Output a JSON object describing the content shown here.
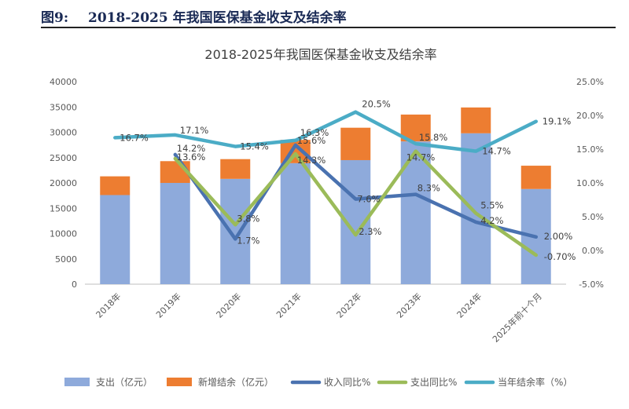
{
  "header": {
    "figure_label": "图9:",
    "figure_title": "2018-2025 年我国医保基金收支及结余率"
  },
  "chart_data": {
    "type": "bar",
    "title": "2018-2025年我国医保基金收支及结余率",
    "categories": [
      "2018年",
      "2019年",
      "2020年",
      "2021年",
      "2022年",
      "2023年",
      "2024年",
      "2025年前十个月"
    ],
    "left_axis": {
      "ylim": [
        0,
        40000
      ],
      "ticks": [
        0,
        5000,
        10000,
        15000,
        20000,
        25000,
        30000,
        35000,
        40000
      ],
      "tick_labels": [
        "0",
        "5000",
        "10000",
        "15000",
        "20000",
        "25000",
        "30000",
        "35000",
        "40000"
      ]
    },
    "right_axis": {
      "ylim": [
        -5,
        25
      ],
      "ticks": [
        -5,
        0,
        5,
        10,
        15,
        20,
        25
      ],
      "tick_labels": [
        "-5.0%",
        "0.0%",
        "5.0%",
        "10.0%",
        "15.0%",
        "20.0%",
        "25.0%"
      ]
    },
    "bar_series": [
      {
        "name": "支出（亿元）",
        "color": "#8eaadb",
        "values": [
          17600,
          20000,
          20800,
          23900,
          24500,
          28200,
          29800,
          18800
        ]
      },
      {
        "name": "新增结余（亿元）",
        "color": "#ed7d31",
        "values": [
          3700,
          4300,
          3900,
          4600,
          6400,
          5300,
          5100,
          4600
        ]
      }
    ],
    "line_series": [
      {
        "name": "收入同比%",
        "color": "#4a72b0",
        "values": [
          null,
          14.2,
          1.7,
          15.6,
          7.6,
          8.3,
          4.2,
          2.0
        ],
        "labels": [
          null,
          "14.2%",
          "1.7%",
          "15.6%",
          "7.6%",
          "8.3%",
          "4.2%",
          "2.00%"
        ]
      },
      {
        "name": "支出同比%",
        "color": "#9bbb59",
        "values": [
          null,
          13.6,
          3.8,
          14.3,
          2.3,
          14.7,
          5.5,
          -0.7
        ],
        "labels": [
          null,
          "13.6%",
          "3.8%",
          "14.3%",
          "2.3%",
          "14.7%",
          "5.5%",
          "-0.70%"
        ]
      },
      {
        "name": "当年结余率（%）",
        "color": "#4bacc6",
        "values": [
          16.7,
          17.1,
          15.4,
          16.3,
          20.5,
          15.8,
          14.7,
          19.1
        ],
        "labels": [
          "16.7%",
          "17.1%",
          "15.4%",
          "16.3%",
          "20.5%",
          "15.8%",
          "14.7%",
          "19.1%"
        ]
      }
    ],
    "legend_position": "bottom",
    "grid": false
  }
}
